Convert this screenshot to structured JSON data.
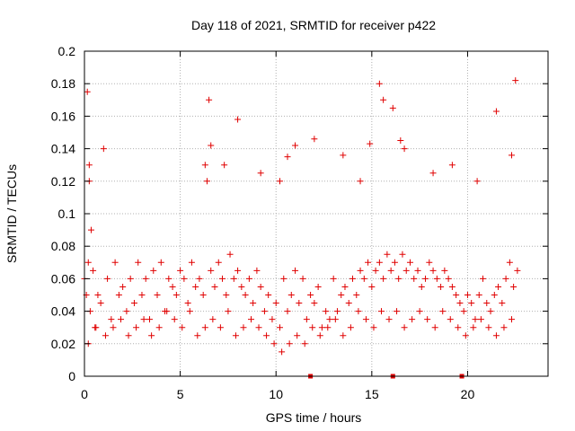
{
  "chart_data": {
    "type": "scatter",
    "title": "Day 118 of 2021, SRMTID for receiver p422",
    "xlabel": "GPS time / hours",
    "ylabel": "SRMTID / TECUs",
    "xlim": [
      0,
      24.2
    ],
    "ylim": [
      0,
      0.2
    ],
    "xticks": [
      0,
      5,
      10,
      15,
      20
    ],
    "xtick_labels": [
      "0",
      "5",
      "10",
      "15",
      "20"
    ],
    "yticks": [
      0,
      0.02,
      0.04,
      0.06,
      0.08,
      0.1,
      0.12,
      0.14,
      0.16,
      0.18,
      0.2
    ],
    "ytick_labels": [
      "0",
      "0.02",
      "0.04",
      "0.06",
      "0.08",
      "0.1",
      "0.12",
      "0.14",
      "0.16",
      "0.18",
      "0.2"
    ],
    "grid": true,
    "marker": "+",
    "color": "#e00000",
    "series": [
      {
        "name": "SRMTID",
        "x": [
          0.0,
          0.1,
          0.15,
          0.2,
          0.25,
          0.3,
          0.35,
          0.45,
          0.55,
          0.7,
          0.85,
          1.0,
          1.2,
          1.4,
          1.6,
          1.8,
          2.0,
          2.2,
          2.4,
          2.6,
          2.8,
          3.0,
          3.2,
          3.4,
          3.6,
          3.8,
          4.0,
          4.2,
          4.4,
          4.6,
          4.8,
          5.0,
          5.2,
          5.4,
          5.6,
          5.8,
          6.0,
          6.2,
          6.4,
          6.6,
          6.8,
          7.0,
          7.2,
          7.4,
          7.6,
          7.8,
          8.0,
          8.2,
          8.4,
          8.6,
          8.8,
          9.0,
          9.2,
          9.4,
          9.6,
          9.8,
          10.0,
          10.2,
          10.4,
          10.6,
          10.8,
          11.0,
          11.2,
          11.4,
          11.6,
          11.8,
          12.0,
          12.2,
          12.4,
          12.6,
          12.8,
          13.0,
          13.2,
          13.4,
          13.6,
          13.8,
          14.0,
          14.2,
          14.4,
          14.6,
          14.8,
          15.0,
          15.2,
          15.4,
          15.6,
          15.8,
          16.0,
          16.2,
          16.4,
          16.6,
          16.8,
          17.0,
          17.2,
          17.4,
          17.6,
          17.8,
          18.0,
          18.2,
          18.4,
          18.6,
          18.8,
          19.0,
          19.2,
          19.4,
          19.6,
          19.8,
          20.0,
          20.2,
          20.4,
          20.6,
          20.8,
          21.0,
          21.2,
          21.4,
          21.6,
          21.8,
          22.0,
          22.2,
          22.4,
          22.6,
          0.2,
          0.6,
          1.1,
          1.5,
          1.9,
          2.3,
          2.7,
          3.1,
          3.5,
          3.9,
          4.3,
          4.7,
          5.1,
          5.5,
          5.9,
          6.3,
          6.7,
          7.1,
          7.5,
          7.9,
          8.3,
          8.7,
          9.1,
          9.5,
          9.9,
          10.3,
          10.7,
          11.1,
          11.5,
          11.9,
          12.3,
          12.7,
          13.1,
          13.5,
          13.9,
          14.3,
          14.7,
          15.1,
          15.5,
          15.9,
          16.3,
          16.7,
          17.1,
          17.5,
          17.9,
          18.3,
          18.7,
          19.1,
          19.5,
          19.9,
          20.3,
          20.7,
          21.1,
          21.5,
          21.9,
          22.3,
          0.25,
          6.5,
          8.0,
          11.0,
          12.0,
          15.4,
          15.6,
          16.1,
          21.5,
          22.5,
          6.3,
          6.6,
          7.3,
          9.2,
          10.2,
          10.6,
          13.5,
          14.4,
          14.9,
          16.5,
          16.7,
          18.2,
          19.2,
          20.5,
          22.3
        ],
        "y": [
          0.06,
          0.05,
          0.175,
          0.07,
          0.12,
          0.04,
          0.09,
          0.065,
          0.03,
          0.05,
          0.045,
          0.14,
          0.06,
          0.035,
          0.07,
          0.05,
          0.055,
          0.04,
          0.06,
          0.045,
          0.07,
          0.05,
          0.06,
          0.035,
          0.065,
          0.05,
          0.07,
          0.04,
          0.06,
          0.055,
          0.05,
          0.065,
          0.06,
          0.045,
          0.07,
          0.055,
          0.06,
          0.05,
          0.12,
          0.065,
          0.055,
          0.07,
          0.06,
          0.05,
          0.075,
          0.06,
          0.065,
          0.055,
          0.05,
          0.06,
          0.045,
          0.065,
          0.055,
          0.04,
          0.05,
          0.035,
          0.045,
          0.03,
          0.06,
          0.04,
          0.05,
          0.065,
          0.045,
          0.06,
          0.035,
          0.05,
          0.045,
          0.055,
          0.03,
          0.04,
          0.035,
          0.06,
          0.04,
          0.05,
          0.055,
          0.045,
          0.06,
          0.05,
          0.065,
          0.06,
          0.07,
          0.055,
          0.065,
          0.07,
          0.06,
          0.075,
          0.065,
          0.07,
          0.06,
          0.075,
          0.065,
          0.07,
          0.06,
          0.065,
          0.055,
          0.06,
          0.07,
          0.065,
          0.06,
          0.055,
          0.065,
          0.06,
          0.055,
          0.05,
          0.045,
          0.04,
          0.05,
          0.045,
          0.035,
          0.05,
          0.06,
          0.045,
          0.04,
          0.05,
          0.055,
          0.045,
          0.06,
          0.07,
          0.055,
          0.065,
          0.02,
          0.03,
          0.025,
          0.03,
          0.035,
          0.025,
          0.03,
          0.035,
          0.025,
          0.03,
          0.04,
          0.035,
          0.03,
          0.04,
          0.025,
          0.03,
          0.035,
          0.03,
          0.04,
          0.025,
          0.03,
          0.035,
          0.03,
          0.025,
          0.02,
          0.015,
          0.02,
          0.025,
          0.02,
          0.03,
          0.025,
          0.03,
          0.035,
          0.025,
          0.03,
          0.04,
          0.035,
          0.03,
          0.04,
          0.035,
          0.04,
          0.03,
          0.035,
          0.04,
          0.035,
          0.03,
          0.04,
          0.035,
          0.03,
          0.025,
          0.03,
          0.035,
          0.03,
          0.025,
          0.03,
          0.035,
          0.13,
          0.17,
          0.158,
          0.142,
          0.146,
          0.18,
          0.17,
          0.165,
          0.163,
          0.182,
          0.13,
          0.142,
          0.13,
          0.125,
          0.12,
          0.135,
          0.136,
          0.12,
          0.143,
          0.145,
          0.14,
          0.125,
          0.13,
          0.12,
          0.136
        ]
      }
    ],
    "axis_markers": [
      11.8,
      16.1,
      19.7
    ]
  }
}
